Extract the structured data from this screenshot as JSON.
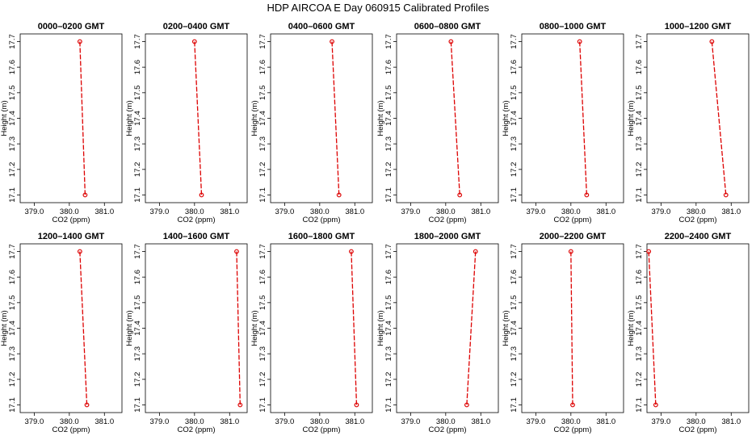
{
  "title": "HDP AIRCOA E  Day 060915  Calibrated Profiles",
  "chart_data": {
    "type": "line",
    "title": "HDP AIRCOA E  Day 060915  Calibrated Profiles",
    "xlabel": "CO2 (ppm)",
    "ylabel": "Height (m)",
    "xlim": [
      378.6,
      381.5
    ],
    "ylim": [
      17.07,
      17.73
    ],
    "xticks": [
      "379.0",
      "380.0",
      "381.0"
    ],
    "xtick_values": [
      379.0,
      380.0,
      381.0
    ],
    "yticks": [
      "17.1",
      "17.2",
      "17.3",
      "17.4",
      "17.5",
      "17.6",
      "17.7"
    ],
    "ytick_values": [
      17.1,
      17.2,
      17.3,
      17.4,
      17.5,
      17.6,
      17.7
    ],
    "line_color": "#dd0000",
    "marker_color": "#dd0000",
    "panels": [
      {
        "title": "0000–0200 GMT",
        "points": [
          {
            "x": 380.3,
            "y": 17.7
          },
          {
            "x": 380.45,
            "y": 17.1
          }
        ]
      },
      {
        "title": "0200–0400 GMT",
        "points": [
          {
            "x": 380.0,
            "y": 17.7
          },
          {
            "x": 380.2,
            "y": 17.1
          }
        ]
      },
      {
        "title": "0400–0600 GMT",
        "points": [
          {
            "x": 380.35,
            "y": 17.7
          },
          {
            "x": 380.55,
            "y": 17.1
          }
        ]
      },
      {
        "title": "0600–0800 GMT",
        "points": [
          {
            "x": 380.15,
            "y": 17.7
          },
          {
            "x": 380.4,
            "y": 17.1
          }
        ]
      },
      {
        "title": "0800–1000 GMT",
        "points": [
          {
            "x": 380.25,
            "y": 17.7
          },
          {
            "x": 380.45,
            "y": 17.1
          }
        ]
      },
      {
        "title": "1000–1200 GMT",
        "points": [
          {
            "x": 380.45,
            "y": 17.7
          },
          {
            "x": 380.85,
            "y": 17.1
          }
        ]
      },
      {
        "title": "1200–1400 GMT",
        "points": [
          {
            "x": 380.3,
            "y": 17.7
          },
          {
            "x": 380.5,
            "y": 17.1
          }
        ]
      },
      {
        "title": "1400–1600 GMT",
        "points": [
          {
            "x": 381.2,
            "y": 17.7
          },
          {
            "x": 381.3,
            "y": 17.1
          }
        ]
      },
      {
        "title": "1600–1800 GMT",
        "points": [
          {
            "x": 380.9,
            "y": 17.7
          },
          {
            "x": 381.05,
            "y": 17.1
          }
        ]
      },
      {
        "title": "1800–2000 GMT",
        "points": [
          {
            "x": 380.85,
            "y": 17.7
          },
          {
            "x": 380.6,
            "y": 17.1
          }
        ]
      },
      {
        "title": "2000–2200 GMT",
        "points": [
          {
            "x": 380.0,
            "y": 17.7
          },
          {
            "x": 380.05,
            "y": 17.1
          }
        ]
      },
      {
        "title": "2200–2400 GMT",
        "points": [
          {
            "x": 378.65,
            "y": 17.7
          },
          {
            "x": 378.85,
            "y": 17.1
          }
        ]
      }
    ]
  }
}
